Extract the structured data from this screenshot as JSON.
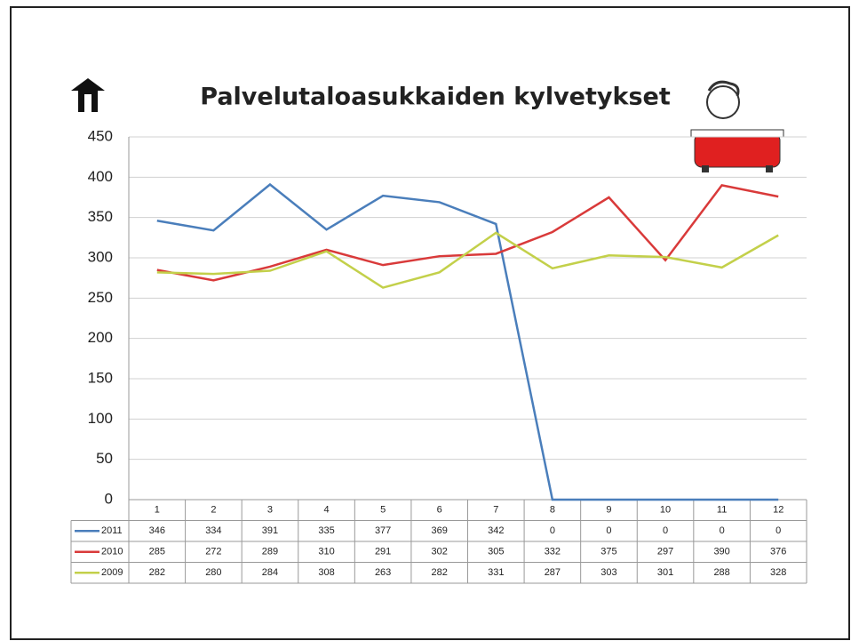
{
  "chart_data": {
    "type": "line",
    "title": "Palvelutaloasukkaiden kylvetykset",
    "categories": [
      "1",
      "2",
      "3",
      "4",
      "5",
      "6",
      "7",
      "8",
      "9",
      "10",
      "11",
      "12"
    ],
    "series": [
      {
        "name": "2011",
        "color": "#4a7ebb",
        "values": [
          346,
          334,
          391,
          335,
          377,
          369,
          342,
          0,
          0,
          0,
          0,
          0
        ]
      },
      {
        "name": "2010",
        "color": "#d93a3a",
        "values": [
          285,
          272,
          289,
          310,
          291,
          302,
          305,
          332,
          375,
          297,
          390,
          376
        ]
      },
      {
        "name": "2009",
        "color": "#c3d04a",
        "values": [
          282,
          280,
          284,
          308,
          263,
          282,
          331,
          287,
          303,
          301,
          288,
          328
        ]
      }
    ],
    "ylim": [
      0,
      450
    ],
    "yticks": [
      0,
      50,
      100,
      150,
      200,
      250,
      300,
      350,
      400,
      450
    ],
    "grid": true
  }
}
